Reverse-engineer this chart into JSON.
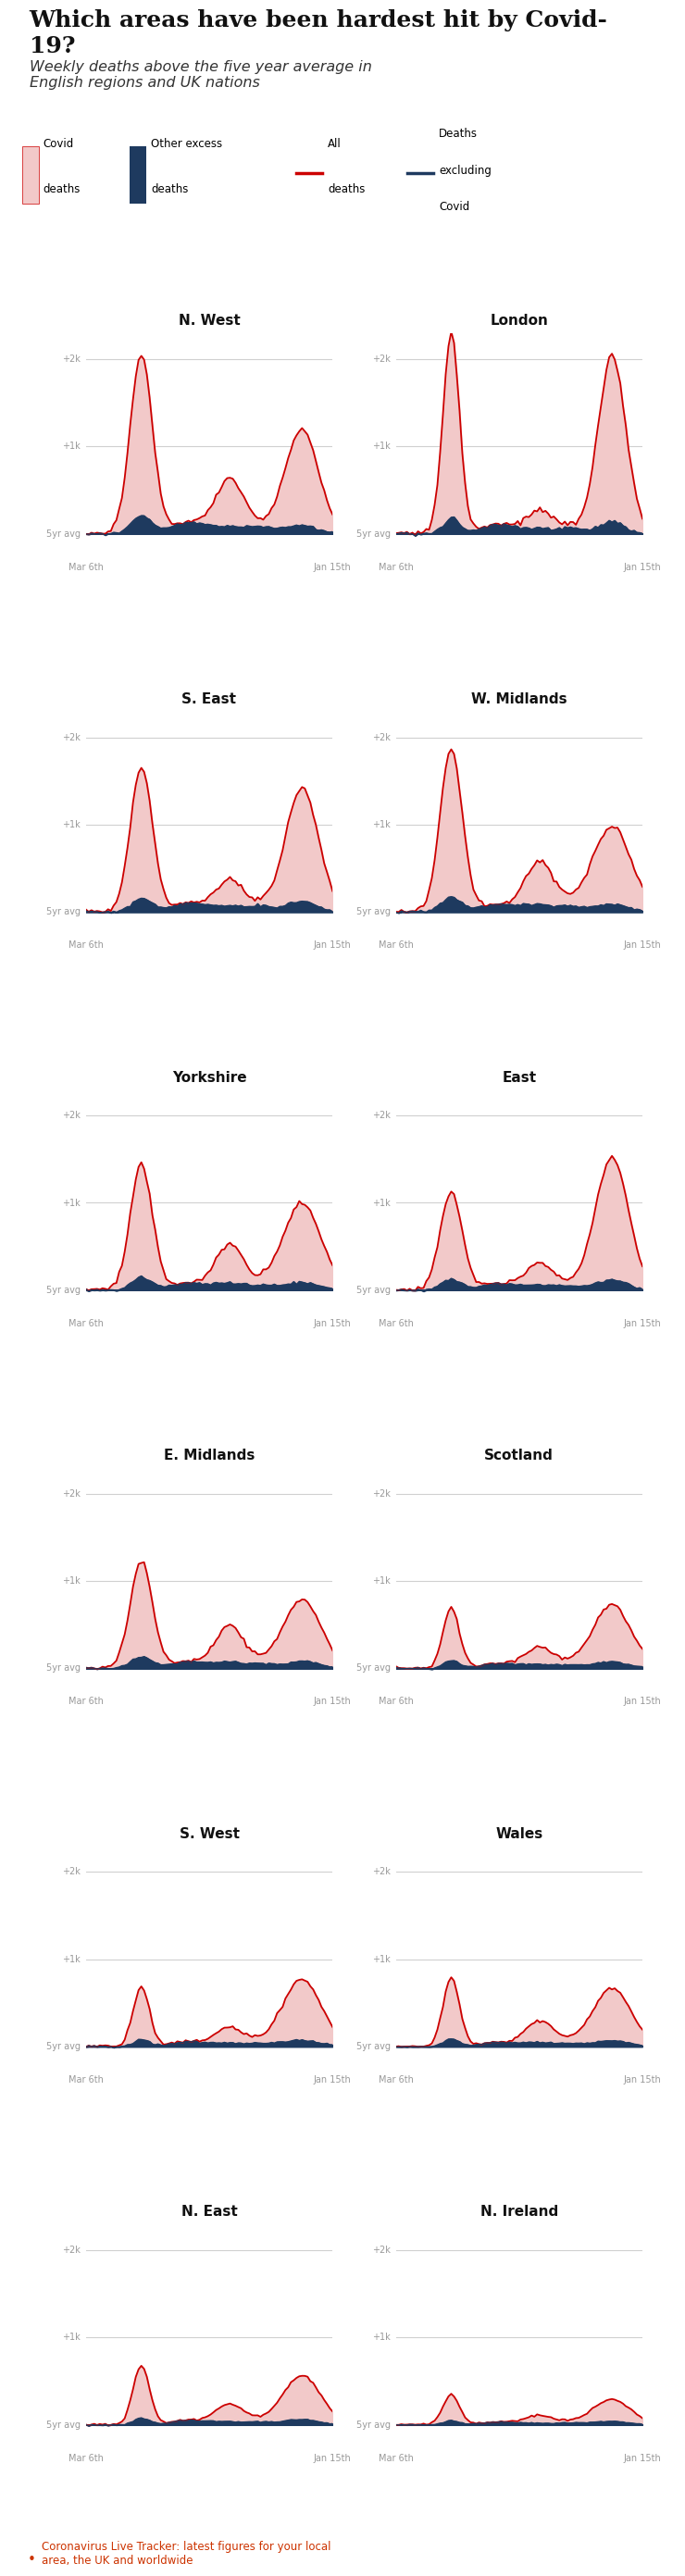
{
  "title": "Which areas have been hardest hit by Covid-\n19?",
  "subtitle": "Weekly deaths above the five year average in\nEnglish regions and UK nations",
  "regions": [
    "N. West",
    "London",
    "S. East",
    "W. Midlands",
    "Yorkshire",
    "East",
    "E. Midlands",
    "Scotland",
    "S. West",
    "Wales",
    "N. East",
    "N. Ireland"
  ],
  "colors": {
    "covid_fill": "#f2c9c9",
    "other_excess_fill": "#1e3a5f",
    "all_deaths_line": "#cc0000",
    "deaths_excl_covid_line": "#1e3a5f",
    "grid_line": "#d0d0d0",
    "title_color": "#111111",
    "subtitle_color": "#333333",
    "tick_label_color": "#999999",
    "region_title_color": "#111111",
    "background": "#ffffff",
    "link_color": "#cc3300"
  },
  "ylim": [
    -300,
    2300
  ],
  "y_ticks": [
    2000,
    1000,
    0
  ],
  "y_labels": [
    "+2k",
    "+1k",
    "5yr avg"
  ]
}
